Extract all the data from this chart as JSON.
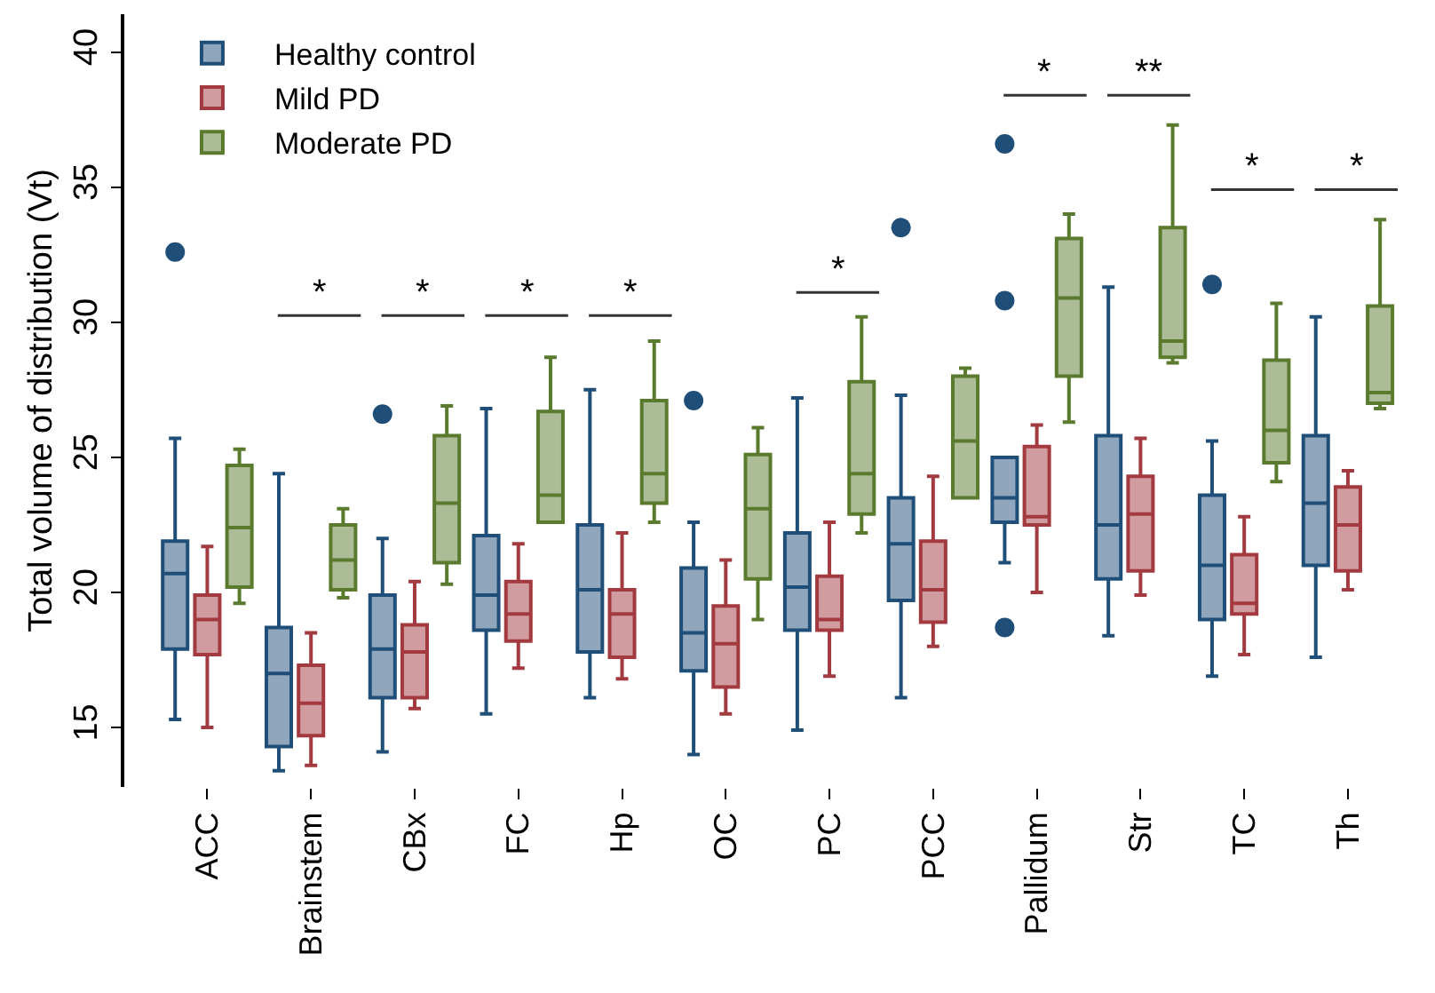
{
  "chart_data": {
    "type": "box",
    "ylabel": "Total volume of distribution (Vt)",
    "categories": [
      "ACC",
      "Brainstem",
      "CBx",
      "FC",
      "Hp",
      "OC",
      "PC",
      "PCC",
      "Pallidum",
      "Str",
      "TC",
      "Th"
    ],
    "ylim": [
      12.8,
      41.4
    ],
    "yticks": [
      15,
      20,
      25,
      30,
      35,
      40
    ],
    "legend": "top left",
    "series": [
      {
        "name": "Healthy control",
        "color": "#1f4e79",
        "boxes": [
          {
            "low": 15.3,
            "q1": 17.9,
            "median": 20.7,
            "q3": 21.9,
            "high": 25.7,
            "outliers": [
              32.6
            ]
          },
          {
            "low": 13.4,
            "q1": 14.3,
            "median": 17.0,
            "q3": 18.7,
            "high": 24.4
          },
          {
            "low": 14.1,
            "q1": 16.1,
            "median": 17.9,
            "q3": 19.9,
            "high": 22.0,
            "outliers": [
              26.6
            ]
          },
          {
            "low": 15.5,
            "q1": 18.6,
            "median": 19.9,
            "q3": 22.1,
            "high": 26.8
          },
          {
            "low": 16.1,
            "q1": 17.8,
            "median": 20.1,
            "q3": 22.5,
            "high": 27.5
          },
          {
            "low": 14.0,
            "q1": 17.1,
            "median": 18.5,
            "q3": 20.9,
            "high": 22.6,
            "outliers": [
              27.1
            ]
          },
          {
            "low": 14.9,
            "q1": 18.6,
            "median": 20.2,
            "q3": 22.2,
            "high": 27.2
          },
          {
            "low": 16.1,
            "q1": 19.7,
            "median": 21.8,
            "q3": 23.5,
            "high": 27.3,
            "outliers": [
              33.5
            ]
          },
          {
            "low": 21.1,
            "q1": 22.6,
            "median": 23.5,
            "q3": 25.0,
            "high": 25.0,
            "outliers": [
              36.6,
              30.8,
              18.7
            ]
          },
          {
            "low": 18.4,
            "q1": 20.5,
            "median": 22.5,
            "q3": 25.8,
            "high": 31.3
          },
          {
            "low": 16.9,
            "q1": 19.0,
            "median": 21.0,
            "q3": 23.6,
            "high": 25.6,
            "outliers": [
              31.4
            ]
          },
          {
            "low": 17.6,
            "q1": 21.0,
            "median": 23.3,
            "q3": 25.8,
            "high": 30.2
          }
        ]
      },
      {
        "name": "Mild PD",
        "color": "#a23a3f",
        "boxes": [
          {
            "low": 15.0,
            "q1": 17.7,
            "median": 19.0,
            "q3": 19.9,
            "high": 21.7
          },
          {
            "low": 13.6,
            "q1": 14.7,
            "median": 15.9,
            "q3": 17.3,
            "high": 18.5
          },
          {
            "low": 15.7,
            "q1": 16.1,
            "median": 17.8,
            "q3": 18.8,
            "high": 20.4
          },
          {
            "low": 17.2,
            "q1": 18.2,
            "median": 19.2,
            "q3": 20.4,
            "high": 21.8
          },
          {
            "low": 16.8,
            "q1": 17.6,
            "median": 19.2,
            "q3": 20.1,
            "high": 22.2
          },
          {
            "low": 15.5,
            "q1": 16.5,
            "median": 18.1,
            "q3": 19.5,
            "high": 21.2
          },
          {
            "low": 16.9,
            "q1": 18.6,
            "median": 19.0,
            "q3": 20.6,
            "high": 22.6
          },
          {
            "low": 18.0,
            "q1": 18.9,
            "median": 20.1,
            "q3": 21.9,
            "high": 24.3
          },
          {
            "low": 20.0,
            "q1": 22.5,
            "median": 22.8,
            "q3": 25.4,
            "high": 26.2
          },
          {
            "low": 19.9,
            "q1": 20.8,
            "median": 22.9,
            "q3": 24.3,
            "high": 25.7
          },
          {
            "low": 17.7,
            "q1": 19.2,
            "median": 19.6,
            "q3": 21.4,
            "high": 22.8
          },
          {
            "low": 20.1,
            "q1": 20.8,
            "median": 22.5,
            "q3": 23.9,
            "high": 24.5
          }
        ]
      },
      {
        "name": "Moderate PD",
        "color": "#5a7a2e",
        "boxes": [
          {
            "low": 19.6,
            "q1": 20.2,
            "median": 22.4,
            "q3": 24.7,
            "high": 25.3
          },
          {
            "low": 19.8,
            "q1": 20.1,
            "median": 21.2,
            "q3": 22.5,
            "high": 23.1
          },
          {
            "low": 20.3,
            "q1": 21.1,
            "median": 23.3,
            "q3": 25.8,
            "high": 26.9
          },
          {
            "low": 22.6,
            "q1": 22.6,
            "median": 23.6,
            "q3": 26.7,
            "high": 28.7
          },
          {
            "low": 22.6,
            "q1": 23.3,
            "median": 24.4,
            "q3": 27.1,
            "high": 29.3
          },
          {
            "low": 19.0,
            "q1": 20.5,
            "median": 23.1,
            "q3": 25.1,
            "high": 26.1
          },
          {
            "low": 22.2,
            "q1": 22.9,
            "median": 24.4,
            "q3": 27.8,
            "high": 30.2
          },
          {
            "low": 23.5,
            "q1": 23.5,
            "median": 25.6,
            "q3": 28.0,
            "high": 28.3
          },
          {
            "low": 26.3,
            "q1": 28.0,
            "median": 30.9,
            "q3": 33.1,
            "high": 34.0
          },
          {
            "low": 28.5,
            "q1": 28.7,
            "median": 29.3,
            "q3": 33.5,
            "high": 37.3
          },
          {
            "low": 24.1,
            "q1": 24.8,
            "median": 26.0,
            "q3": 28.6,
            "high": 30.7
          },
          {
            "low": 26.8,
            "q1": 27.0,
            "median": 27.4,
            "q3": 30.6,
            "high": 33.8
          }
        ]
      }
    ],
    "annotations": [
      "*",
      "*",
      "*",
      "*",
      "*",
      "*",
      "**",
      "*",
      "*"
    ]
  }
}
